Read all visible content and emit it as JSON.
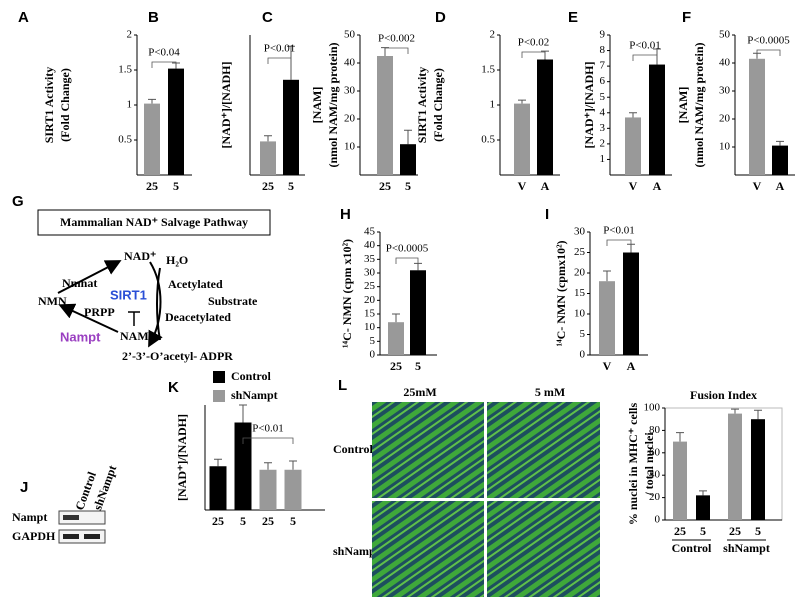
{
  "chart_data": [
    {
      "panel": "A",
      "type": "bar",
      "ylabel": [
        "SIRT1 Activity",
        "(Fold Change)"
      ],
      "categories": [
        "25",
        "5"
      ],
      "values": [
        1.02,
        1.52
      ],
      "errors": [
        0.06,
        0.08
      ],
      "colors": [
        "#999999",
        "#000000"
      ],
      "ylim": [
        0,
        2
      ],
      "yticks": [
        0.5,
        1,
        1.5,
        2
      ],
      "annotation": "P<0.04"
    },
    {
      "panel": "B",
      "type": "bar",
      "ylabel": [
        "[NAD⁺]/[NADH]"
      ],
      "categories": [
        "25",
        "5"
      ],
      "values": [
        6,
        17
      ],
      "errors": [
        1,
        6
      ],
      "colors": [
        "#999999",
        "#000000"
      ],
      "ylim": [
        0,
        25
      ],
      "annotation": "P<0.01"
    },
    {
      "panel": "C",
      "type": "bar",
      "ylabel": [
        "[NAM]",
        "(nmol NAM/mg protein)"
      ],
      "categories": [
        "25",
        "5"
      ],
      "values": [
        42.5,
        11
      ],
      "errors": [
        3,
        5
      ],
      "colors": [
        "#999999",
        "#000000"
      ],
      "ylim": [
        0,
        50
      ],
      "yticks": [
        10,
        20,
        30,
        40,
        50
      ],
      "annotation": "P<0.002"
    },
    {
      "panel": "D",
      "type": "bar",
      "ylabel": [
        "SIRT1 Activity",
        "(Fold Change)"
      ],
      "categories": [
        "V",
        "A"
      ],
      "values": [
        1.02,
        1.65
      ],
      "errors": [
        0.05,
        0.12
      ],
      "colors": [
        "#999999",
        "#000000"
      ],
      "ylim": [
        0,
        2
      ],
      "yticks": [
        0.5,
        1,
        1.5,
        2
      ],
      "annotation": "P<0.02"
    },
    {
      "panel": "E",
      "type": "bar",
      "ylabel": [
        "[NAD⁺]/[NADH]"
      ],
      "categories": [
        "V",
        "A"
      ],
      "values": [
        3.7,
        7.1
      ],
      "errors": [
        0.3,
        1
      ],
      "colors": [
        "#999999",
        "#000000"
      ],
      "ylim": [
        0,
        9
      ],
      "yticks": [
        1,
        2,
        3,
        4,
        5,
        6,
        7,
        8,
        9
      ],
      "annotation": "P<0.01"
    },
    {
      "panel": "F",
      "type": "bar",
      "ylabel": [
        "[NAM]",
        "(nmol NAM/mg protein)"
      ],
      "categories": [
        "V",
        "A"
      ],
      "values": [
        41.5,
        10.5
      ],
      "errors": [
        2,
        1.5
      ],
      "colors": [
        "#999999",
        "#000000"
      ],
      "ylim": [
        0,
        50
      ],
      "yticks": [
        10,
        20,
        30,
        40,
        50
      ],
      "annotation": "P<0.0005"
    },
    {
      "panel": "H",
      "type": "bar",
      "ylabel": [
        "¹⁴C- NMN (cpm x10²)"
      ],
      "categories": [
        "25",
        "5"
      ],
      "values": [
        12,
        31
      ],
      "errors": [
        3,
        2.5
      ],
      "colors": [
        "#999999",
        "#000000"
      ],
      "ylim": [
        0,
        45
      ],
      "yticks": [
        0,
        5,
        10,
        15,
        20,
        25,
        30,
        35,
        40,
        45
      ],
      "annotation": "P<0.0005"
    },
    {
      "panel": "I",
      "type": "bar",
      "ylabel": [
        "¹⁴C- NMN (cpmx10²)"
      ],
      "categories": [
        "V",
        "A"
      ],
      "values": [
        18,
        25
      ],
      "errors": [
        2.5,
        2
      ],
      "colors": [
        "#999999",
        "#000000"
      ],
      "ylim": [
        0,
        30
      ],
      "yticks": [
        0,
        5,
        10,
        15,
        20,
        25,
        30
      ],
      "annotation": "P<0.01"
    },
    {
      "panel": "K",
      "type": "bar",
      "ylabel": [
        "[NAD⁺]/[NADH]"
      ],
      "categories": [
        "25",
        "5",
        "25",
        "5"
      ],
      "series": [
        {
          "name": "Control",
          "color": "#000000",
          "values": [
            12.5,
            25,
            null,
            null
          ],
          "errors": [
            2,
            5,
            null,
            null
          ]
        },
        {
          "name": "shNampt",
          "color": "#999999",
          "values": [
            null,
            null,
            11.5,
            11.5
          ],
          "errors": [
            null,
            null,
            2,
            2.5
          ]
        }
      ],
      "ylim": [
        0,
        30
      ],
      "annotation": "P<0.01"
    },
    {
      "type": "bar",
      "title": "Fusion Index",
      "ylabel": [
        "% nuclei in MHC⁺ cells",
        "/ total nuclei"
      ],
      "categories": [
        "25",
        "5",
        "25",
        "5"
      ],
      "groups": [
        "Control",
        "shNampt"
      ],
      "values": [
        70,
        22,
        95,
        90
      ],
      "errors": [
        8,
        4,
        4,
        8
      ],
      "colors": [
        "#999999",
        "#000000",
        "#999999",
        "#000000"
      ],
      "ylim": [
        0,
        100
      ],
      "yticks": [
        0,
        20,
        40,
        60,
        80,
        100
      ]
    }
  ],
  "diagram": {
    "panel": "G",
    "title": "Mammalian NAD⁺ Salvage Pathway",
    "labels": {
      "nad": "NAD⁺",
      "water": "H₂O",
      "nmnat": "Nmnat",
      "nmn": "NMN",
      "sirt1": "SIRT1",
      "prpp": "PRPP",
      "acetylated": "Acetylated",
      "substrate": "Substrate",
      "deacetylated": "Deacetylated",
      "nampt": "Nampt",
      "nam": "NAM",
      "adpr": "2’-3’-O’acetyl- ADPR"
    }
  },
  "blot": {
    "panel": "J",
    "lanes": [
      "Control",
      "shNampt"
    ],
    "rows": [
      "Nampt",
      "GAPDH"
    ]
  },
  "micrographs": {
    "panel": "L",
    "columns": [
      "25mM",
      "5 mM"
    ],
    "rows": [
      "Control",
      "shNampt"
    ]
  }
}
